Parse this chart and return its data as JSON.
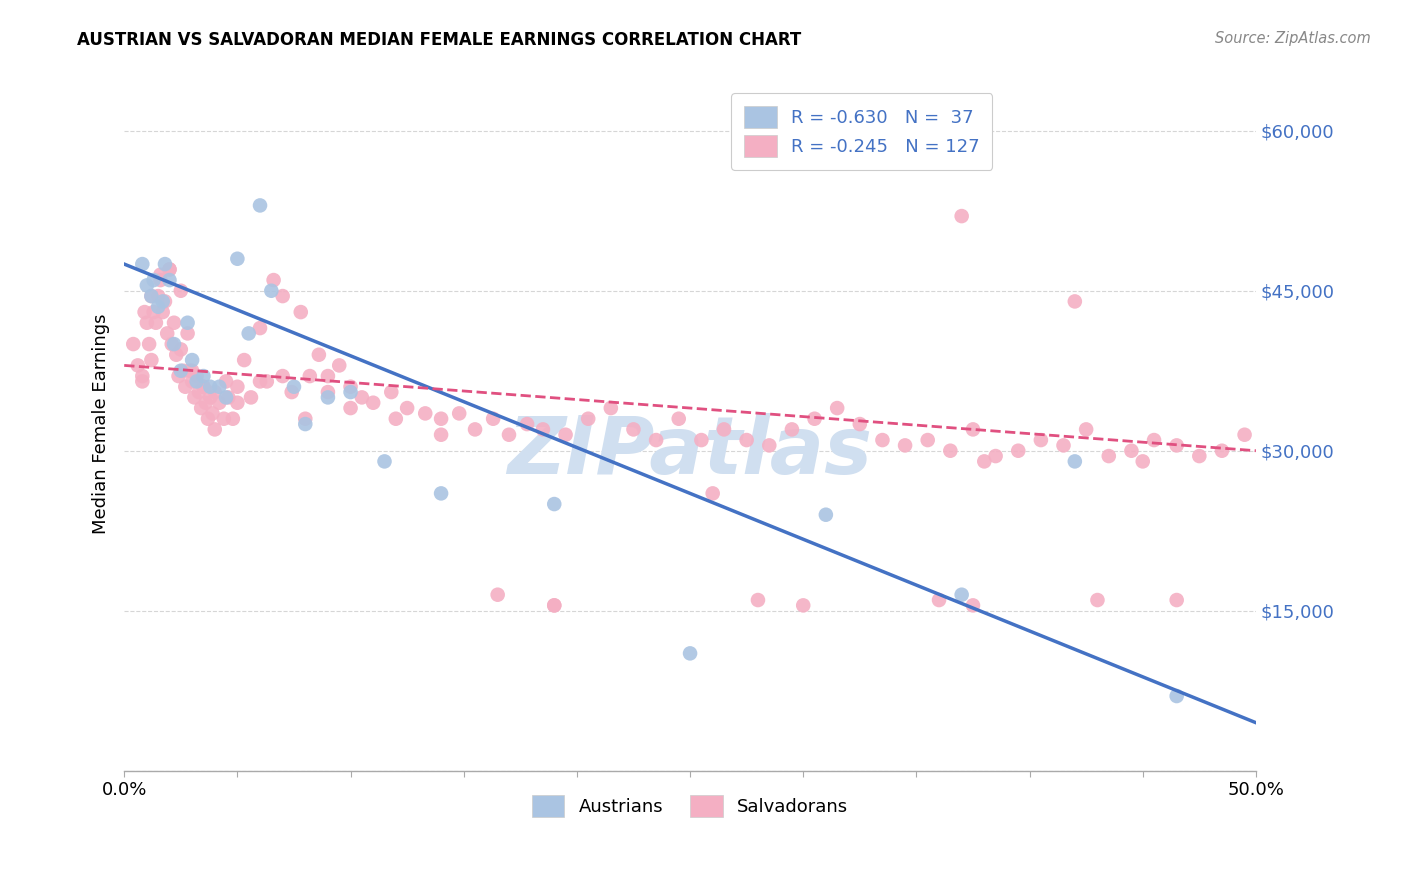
{
  "title": "AUSTRIAN VS SALVADORAN MEDIAN FEMALE EARNINGS CORRELATION CHART",
  "source": "Source: ZipAtlas.com",
  "ylabel": "Median Female Earnings",
  "yticks": [
    0,
    15000,
    30000,
    45000,
    60000
  ],
  "ytick_labels": [
    "",
    "$15,000",
    "$30,000",
    "$45,000",
    "$60,000"
  ],
  "xlim": [
    0.0,
    0.5
  ],
  "ylim": [
    0,
    65000
  ],
  "austrian_color": "#aac4e2",
  "salvadoran_color": "#f4afc3",
  "austrian_line_color": "#4472c4",
  "salvadoran_line_color": "#e05080",
  "watermark": "ZIPatlas",
  "watermark_color": "#d0dff0",
  "background_color": "#ffffff",
  "austrian_line_x0": 0.0,
  "austrian_line_y0": 47500,
  "austrian_line_x1": 0.5,
  "austrian_line_y1": 4500,
  "salvadoran_line_x0": 0.0,
  "salvadoran_line_y0": 38000,
  "salvadoran_line_x1": 0.5,
  "salvadoran_line_y1": 30000,
  "austrians_x": [
    0.008,
    0.01,
    0.012,
    0.013,
    0.015,
    0.017,
    0.018,
    0.02,
    0.022,
    0.025,
    0.028,
    0.03,
    0.032,
    0.035,
    0.038,
    0.042,
    0.045,
    0.05,
    0.055,
    0.06,
    0.065,
    0.075,
    0.08,
    0.09,
    0.1,
    0.115,
    0.14,
    0.19,
    0.25,
    0.31,
    0.37,
    0.42,
    0.465
  ],
  "austrians_y": [
    47500,
    45500,
    44500,
    46000,
    43500,
    44000,
    47500,
    46000,
    40000,
    37500,
    42000,
    38500,
    36500,
    37000,
    36000,
    36000,
    35000,
    48000,
    41000,
    53000,
    45000,
    36000,
    32500,
    35000,
    35500,
    29000,
    26000,
    25000,
    11000,
    24000,
    16500,
    29000,
    7000
  ],
  "salvadorans_x": [
    0.004,
    0.006,
    0.008,
    0.009,
    0.01,
    0.011,
    0.012,
    0.013,
    0.014,
    0.015,
    0.016,
    0.017,
    0.018,
    0.019,
    0.02,
    0.021,
    0.022,
    0.023,
    0.024,
    0.025,
    0.026,
    0.027,
    0.028,
    0.029,
    0.03,
    0.031,
    0.032,
    0.033,
    0.034,
    0.035,
    0.036,
    0.037,
    0.038,
    0.039,
    0.04,
    0.042,
    0.044,
    0.046,
    0.048,
    0.05,
    0.053,
    0.056,
    0.06,
    0.063,
    0.066,
    0.07,
    0.074,
    0.078,
    0.082,
    0.086,
    0.09,
    0.095,
    0.1,
    0.105,
    0.11,
    0.118,
    0.125,
    0.133,
    0.14,
    0.148,
    0.155,
    0.163,
    0.17,
    0.178,
    0.185,
    0.195,
    0.205,
    0.215,
    0.225,
    0.235,
    0.245,
    0.255,
    0.265,
    0.275,
    0.285,
    0.295,
    0.305,
    0.315,
    0.325,
    0.335,
    0.345,
    0.355,
    0.365,
    0.375,
    0.385,
    0.395,
    0.405,
    0.415,
    0.425,
    0.435,
    0.445,
    0.455,
    0.465,
    0.475,
    0.485,
    0.495,
    0.008,
    0.012,
    0.016,
    0.02,
    0.025,
    0.03,
    0.035,
    0.04,
    0.045,
    0.05,
    0.06,
    0.07,
    0.08,
    0.09,
    0.1,
    0.12,
    0.14,
    0.165,
    0.19,
    0.3,
    0.36,
    0.375,
    0.42,
    0.38,
    0.26,
    0.45,
    0.43,
    0.465,
    0.37,
    0.28,
    0.19
  ],
  "salvadorans_y": [
    40000,
    38000,
    37000,
    43000,
    42000,
    40000,
    44500,
    43000,
    42000,
    44500,
    46500,
    43000,
    44000,
    41000,
    47000,
    40000,
    42000,
    39000,
    37000,
    39500,
    37500,
    36000,
    41000,
    37500,
    36500,
    35000,
    37000,
    35500,
    34000,
    36000,
    34500,
    33000,
    35000,
    33500,
    32000,
    34500,
    33000,
    35000,
    33000,
    34500,
    38500,
    35000,
    41500,
    36500,
    46000,
    44500,
    35500,
    43000,
    37000,
    39000,
    37000,
    38000,
    36000,
    35000,
    34500,
    35500,
    34000,
    33500,
    33000,
    33500,
    32000,
    33000,
    31500,
    32500,
    32000,
    31500,
    33000,
    34000,
    32000,
    31000,
    33000,
    31000,
    32000,
    31000,
    30500,
    32000,
    33000,
    34000,
    32500,
    31000,
    30500,
    31000,
    30000,
    32000,
    29500,
    30000,
    31000,
    30500,
    32000,
    29500,
    30000,
    31000,
    30500,
    29500,
    30000,
    31500,
    36500,
    38500,
    46000,
    47000,
    45000,
    37500,
    36000,
    35500,
    36500,
    36000,
    36500,
    37000,
    33000,
    35500,
    34000,
    33000,
    31500,
    16500,
    15500,
    15500,
    16000,
    15500,
    44000,
    29000,
    26000,
    29000,
    16000,
    16000,
    52000,
    16000,
    15500
  ]
}
